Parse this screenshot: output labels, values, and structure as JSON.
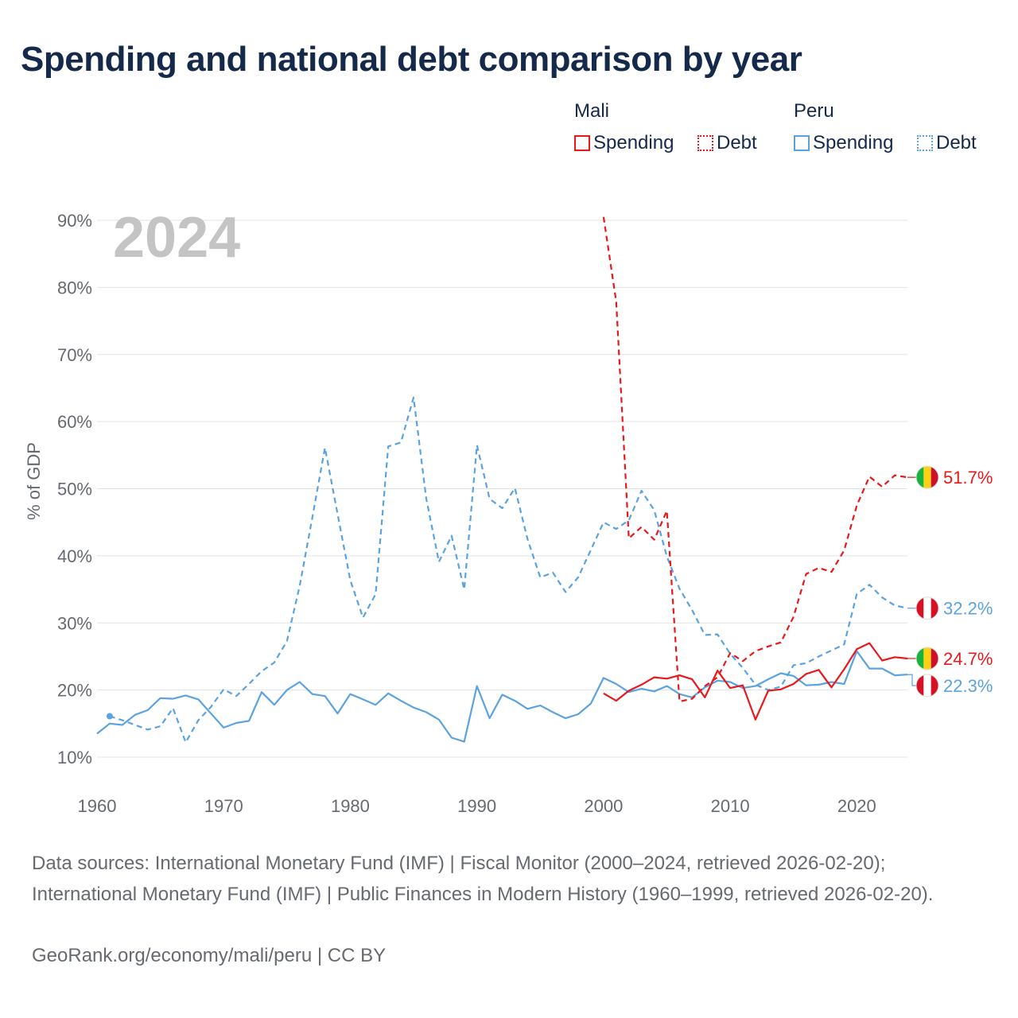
{
  "title": "Spending and national debt comparison by year",
  "legend": {
    "mali": {
      "name": "Mali",
      "spending": "Spending",
      "debt": "Debt",
      "color": "#e8191d"
    },
    "peru": {
      "name": "Peru",
      "spending": "Spending",
      "debt": "Debt",
      "color": "#5ba3e0"
    }
  },
  "year_watermark": "2024",
  "footer": {
    "sources": "Data sources: International Monetary Fund (IMF) | Fiscal Monitor (2000–2024, retrieved 2026-02-20); International Monetary Fund (IMF) | Public Finances in Modern History (1960–1999, retrieved 2026-02-20).",
    "credit": "GeoRank.org/economy/mali/peru | CC BY"
  },
  "chart_data": {
    "type": "line",
    "title": "Spending and national debt comparison by year",
    "xlabel": "",
    "ylabel": "% of GDP",
    "xlim": [
      1960,
      2024
    ],
    "ylim": [
      10,
      90
    ],
    "x_ticks": [
      1960,
      1970,
      1980,
      1990,
      2000,
      2010,
      2020
    ],
    "y_ticks": [
      10,
      20,
      30,
      40,
      50,
      60,
      70,
      80,
      90
    ],
    "y_tick_labels": [
      "10%",
      "20%",
      "30%",
      "40%",
      "50%",
      "60%",
      "70%",
      "80%",
      "90%"
    ],
    "grid": true,
    "end_labels": [
      {
        "series": "Mali Debt",
        "text": "51.7%",
        "color": "#e8191d",
        "flag": "mali"
      },
      {
        "series": "Peru Debt",
        "text": "32.2%",
        "color": "#5ba3e0",
        "flag": "peru"
      },
      {
        "series": "Mali Spending",
        "text": "24.7%",
        "color": "#e8191d",
        "flag": "mali"
      },
      {
        "series": "Peru Spending",
        "text": "22.3%",
        "color": "#5ba3e0",
        "flag": "peru"
      }
    ],
    "series": [
      {
        "name": "Peru Spending",
        "color": "#5ba3e0",
        "dashed": false,
        "x": [
          1960,
          1961,
          1962,
          1963,
          1964,
          1965,
          1966,
          1967,
          1968,
          1969,
          1970,
          1971,
          1972,
          1973,
          1974,
          1975,
          1976,
          1977,
          1978,
          1979,
          1980,
          1981,
          1982,
          1983,
          1984,
          1985,
          1986,
          1987,
          1988,
          1989,
          1990,
          1991,
          1992,
          1993,
          1994,
          1995,
          1996,
          1997,
          1998,
          1999,
          2000,
          2001,
          2002,
          2003,
          2004,
          2005,
          2006,
          2007,
          2008,
          2009,
          2010,
          2011,
          2012,
          2013,
          2014,
          2015,
          2016,
          2017,
          2018,
          2019,
          2020,
          2021,
          2022,
          2023,
          2024
        ],
        "values": [
          13.5,
          15.0,
          14.8,
          16.3,
          17.0,
          18.8,
          18.7,
          19.2,
          18.6,
          16.5,
          14.4,
          15.1,
          15.4,
          19.7,
          17.8,
          20.0,
          21.2,
          19.4,
          19.1,
          16.5,
          19.4,
          18.6,
          17.8,
          19.5,
          18.4,
          17.4,
          16.7,
          15.6,
          12.9,
          12.3,
          20.6,
          15.8,
          19.3,
          18.4,
          17.2,
          17.7,
          16.7,
          15.8,
          16.4,
          18.0,
          21.8,
          20.9,
          19.7,
          20.2,
          19.8,
          20.6,
          19.4,
          18.9,
          20.4,
          21.4,
          21.2,
          20.3,
          20.6,
          21.6,
          22.5,
          22.1,
          20.7,
          20.8,
          21.2,
          20.9,
          25.8,
          23.2,
          23.2,
          22.2,
          22.3
        ]
      },
      {
        "name": "Peru Debt",
        "color": "#5ba3e0",
        "dashed": true,
        "x": [
          1961,
          1962,
          1963,
          1964,
          1965,
          1966,
          1967,
          1968,
          1969,
          1970,
          1971,
          1972,
          1973,
          1974,
          1975,
          1976,
          1977,
          1978,
          1979,
          1980,
          1981,
          1982,
          1983,
          1984,
          1985,
          1986,
          1987,
          1988,
          1989,
          1990,
          1991,
          1992,
          1993,
          1994,
          1995,
          1996,
          1997,
          1998,
          1999,
          2000,
          2001,
          2002,
          2003,
          2004,
          2005,
          2006,
          2007,
          2008,
          2009,
          2010,
          2011,
          2012,
          2013,
          2014,
          2015,
          2016,
          2017,
          2018,
          2019,
          2020,
          2021,
          2022,
          2023,
          2024
        ],
        "values": [
          16.1,
          15.5,
          14.8,
          14.1,
          14.6,
          17.3,
          12.2,
          15.5,
          17.5,
          20.1,
          19.1,
          20.9,
          22.8,
          24.1,
          27.3,
          35.5,
          45.7,
          56.1,
          46.2,
          36.4,
          30.8,
          34.3,
          56.3,
          56.9,
          63.6,
          48.5,
          39.1,
          43.0,
          35.0,
          56.5,
          48.5,
          47.1,
          50.1,
          42.5,
          36.8,
          37.5,
          34.6,
          36.8,
          40.9,
          45.0,
          44.0,
          45.3,
          49.7,
          46.8,
          39.9,
          35.1,
          31.9,
          28.2,
          28.3,
          25.4,
          23.3,
          20.8,
          20.0,
          20.5,
          23.7,
          24.0,
          25.0,
          25.9,
          26.8,
          34.3,
          35.7,
          33.8,
          32.6,
          32.2
        ]
      },
      {
        "name": "Mali Spending",
        "color": "#e8191d",
        "dashed": false,
        "x": [
          2000,
          2001,
          2002,
          2003,
          2004,
          2005,
          2006,
          2007,
          2008,
          2009,
          2010,
          2011,
          2012,
          2013,
          2014,
          2015,
          2016,
          2017,
          2018,
          2019,
          2020,
          2021,
          2022,
          2023,
          2024
        ],
        "values": [
          19.5,
          18.4,
          19.9,
          20.8,
          21.9,
          21.7,
          22.2,
          21.6,
          18.9,
          22.9,
          20.3,
          20.7,
          15.6,
          19.9,
          20.1,
          20.9,
          22.4,
          23.0,
          20.4,
          23.1,
          26.1,
          27.0,
          24.4,
          24.9,
          24.7
        ]
      },
      {
        "name": "Mali Debt",
        "color": "#e8191d",
        "dashed": true,
        "x": [
          2000,
          2001,
          2002,
          2003,
          2004,
          2005,
          2006,
          2007,
          2008,
          2009,
          2010,
          2011,
          2012,
          2013,
          2014,
          2015,
          2016,
          2017,
          2018,
          2019,
          2020,
          2021,
          2022,
          2023,
          2024
        ],
        "values": [
          90.5,
          77.9,
          42.6,
          44.3,
          42.4,
          46.7,
          18.3,
          18.7,
          20.6,
          21.9,
          25.5,
          24.3,
          25.8,
          26.5,
          27.1,
          30.9,
          37.3,
          38.2,
          37.6,
          40.8,
          47.5,
          51.8,
          50.3,
          52.0,
          51.7
        ]
      }
    ]
  }
}
